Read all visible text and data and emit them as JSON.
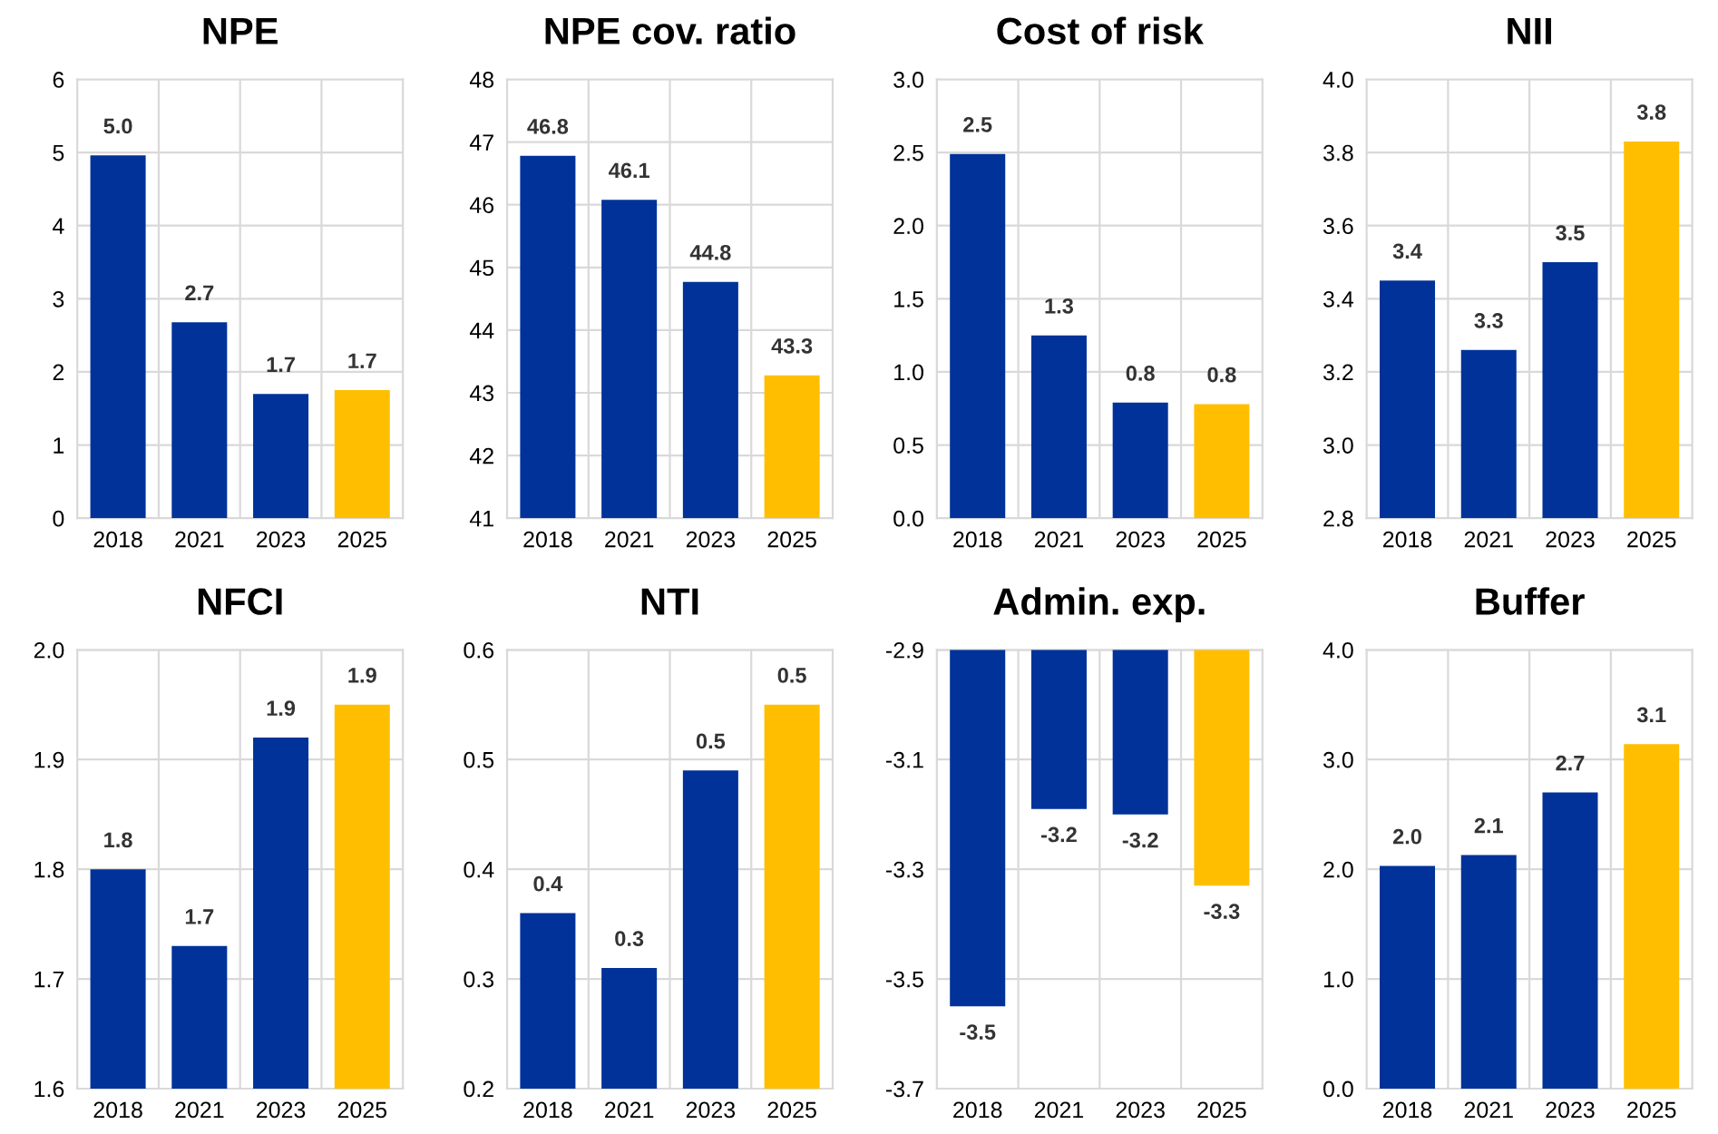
{
  "chart_data": [
    {
      "type": "bar",
      "title": "NPE",
      "categories": [
        "2018",
        "2021",
        "2023",
        "2025"
      ],
      "values": [
        4.96,
        2.68,
        1.7,
        1.75
      ],
      "colors": [
        "#003299",
        "#003299",
        "#003299",
        "#ffbf00"
      ],
      "value_labels": [
        "5.0",
        "2.7",
        "1.7",
        "1.7"
      ],
      "ylim": [
        0,
        6
      ],
      "yticks": [
        0,
        1,
        2,
        3,
        4,
        5,
        6
      ],
      "grid": true
    },
    {
      "type": "bar",
      "title": "NPE cov. ratio",
      "categories": [
        "2018",
        "2021",
        "2023",
        "2025"
      ],
      "values": [
        46.78,
        46.08,
        44.77,
        43.28
      ],
      "colors": [
        "#003299",
        "#003299",
        "#003299",
        "#ffbf00"
      ],
      "value_labels": [
        "46.8",
        "46.1",
        "44.8",
        "43.3"
      ],
      "ylim": [
        41,
        48
      ],
      "yticks": [
        41,
        42,
        43,
        44,
        45,
        46,
        47,
        48
      ],
      "grid": true
    },
    {
      "type": "bar",
      "title": "Cost of risk",
      "categories": [
        "2018",
        "2021",
        "2023",
        "2025"
      ],
      "values": [
        2.49,
        1.25,
        0.79,
        0.78
      ],
      "colors": [
        "#003299",
        "#003299",
        "#003299",
        "#ffbf00"
      ],
      "value_labels": [
        "2.5",
        "1.3",
        "0.8",
        "0.8"
      ],
      "ylim": [
        0.0,
        3.0
      ],
      "yticks": [
        {
          "value": 0,
          "label": "0.0"
        },
        0.5,
        {
          "value": 1,
          "label": "1.0"
        },
        1.5,
        {
          "value": 2,
          "label": "2.0"
        },
        2.5,
        {
          "value": 3,
          "label": "3.0"
        }
      ],
      "grid": true
    },
    {
      "type": "bar",
      "title": "NII",
      "categories": [
        "2018",
        "2021",
        "2023",
        "2025"
      ],
      "values": [
        3.45,
        3.26,
        3.5,
        3.83
      ],
      "colors": [
        "#003299",
        "#003299",
        "#003299",
        "#ffbf00"
      ],
      "value_labels": [
        "3.4",
        "3.3",
        "3.5",
        "3.8"
      ],
      "ylim": [
        2.8,
        4.0
      ],
      "yticks": [
        2.8,
        {
          "value": 3,
          "label": "3.0"
        },
        3.2,
        3.4,
        3.6,
        3.8,
        {
          "value": 4,
          "label": "4.0"
        }
      ],
      "grid": true
    },
    {
      "type": "bar",
      "title": "NFCI",
      "categories": [
        "2018",
        "2021",
        "2023",
        "2025"
      ],
      "values": [
        1.8,
        1.73,
        1.92,
        1.95
      ],
      "colors": [
        "#003299",
        "#003299",
        "#003299",
        "#ffbf00"
      ],
      "value_labels": [
        "1.8",
        "1.7",
        "1.9",
        "1.9"
      ],
      "ylim": [
        1.6,
        2.0
      ],
      "yticks": [
        1.6,
        1.7,
        1.8,
        1.9,
        {
          "value": 2,
          "label": "2.0"
        }
      ],
      "grid": true
    },
    {
      "type": "bar",
      "title": "NTI",
      "categories": [
        "2018",
        "2021",
        "2023",
        "2025"
      ],
      "values": [
        0.36,
        0.31,
        0.49,
        0.55
      ],
      "colors": [
        "#003299",
        "#003299",
        "#003299",
        "#ffbf00"
      ],
      "value_labels": [
        "0.4",
        "0.3",
        "0.5",
        "0.5"
      ],
      "ylim": [
        0.2,
        0.6
      ],
      "yticks": [
        0.2,
        0.3,
        0.4,
        0.5,
        0.6
      ],
      "grid": true
    },
    {
      "type": "bar",
      "title": "Admin. exp.",
      "categories": [
        "2018",
        "2021",
        "2023",
        "2025"
      ],
      "values": [
        -3.55,
        -3.19,
        -3.2,
        -3.33
      ],
      "colors": [
        "#003299",
        "#003299",
        "#003299",
        "#ffbf00"
      ],
      "value_labels": [
        "-3.5",
        "-3.2",
        "-3.2",
        "-3.3"
      ],
      "ylim": [
        -3.7,
        -2.9
      ],
      "yticks": [
        -3.7,
        -3.5,
        -3.3,
        -3.1,
        -2.9
      ],
      "grid": true
    },
    {
      "type": "bar",
      "title": "Buffer",
      "categories": [
        "2018",
        "2021",
        "2023",
        "2025"
      ],
      "values": [
        2.03,
        2.13,
        2.7,
        3.14
      ],
      "colors": [
        "#003299",
        "#003299",
        "#003299",
        "#ffbf00"
      ],
      "value_labels": [
        "2.0",
        "2.1",
        "2.7",
        "3.1"
      ],
      "ylim": [
        0.0,
        4.0
      ],
      "yticks": [
        {
          "value": 0,
          "label": "0.0"
        },
        {
          "value": 1,
          "label": "1.0"
        },
        {
          "value": 2,
          "label": "2.0"
        },
        {
          "value": 3,
          "label": "3.0"
        },
        {
          "value": 4,
          "label": "4.0"
        }
      ],
      "grid": true
    }
  ]
}
